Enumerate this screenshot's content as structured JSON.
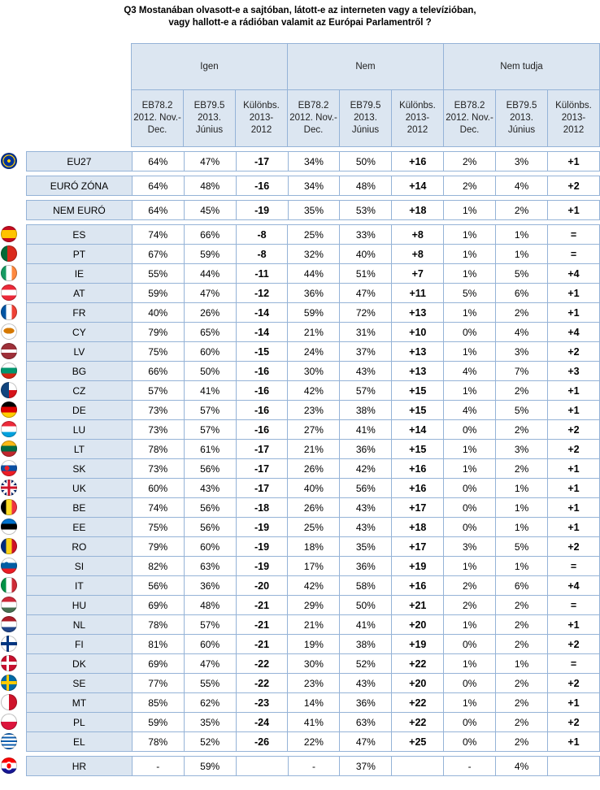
{
  "title": {
    "line1": "Q3 Mostanában olvasott-e a sajtóban, látott-e az interneten vagy a televízióban,",
    "line2": "vagy hallott-e a rádióban valamit az Európai Parlamentről ?"
  },
  "groups": [
    "Igen",
    "Nem",
    "Nem tudja"
  ],
  "subheaders": {
    "eb782": [
      "EB78.2",
      "2012. Nov.-",
      "Dec."
    ],
    "eb795": [
      "EB79.5",
      "2013.",
      "Június"
    ],
    "diff": [
      "Különbs.",
      "2013-",
      "2012"
    ]
  },
  "rows": [
    {
      "label": "EU27",
      "flag": "eu",
      "cells": [
        "64%",
        "47%",
        "-17",
        "34%",
        "50%",
        "+16",
        "2%",
        "3%",
        "+1"
      ]
    },
    {
      "label": "EURÓ ZÓNA",
      "flag": "",
      "cells": [
        "64%",
        "48%",
        "-16",
        "34%",
        "48%",
        "+14",
        "2%",
        "4%",
        "+2"
      ]
    },
    {
      "label": "NEM EURÓ",
      "flag": "",
      "cells": [
        "64%",
        "45%",
        "-19",
        "35%",
        "53%",
        "+18",
        "1%",
        "2%",
        "+1"
      ]
    },
    {
      "label": "ES",
      "flag": "es",
      "cells": [
        "74%",
        "66%",
        "-8",
        "25%",
        "33%",
        "+8",
        "1%",
        "1%",
        "="
      ]
    },
    {
      "label": "PT",
      "flag": "pt",
      "cells": [
        "67%",
        "59%",
        "-8",
        "32%",
        "40%",
        "+8",
        "1%",
        "1%",
        "="
      ]
    },
    {
      "label": "IE",
      "flag": "ie",
      "cells": [
        "55%",
        "44%",
        "-11",
        "44%",
        "51%",
        "+7",
        "1%",
        "5%",
        "+4"
      ]
    },
    {
      "label": "AT",
      "flag": "at",
      "cells": [
        "59%",
        "47%",
        "-12",
        "36%",
        "47%",
        "+11",
        "5%",
        "6%",
        "+1"
      ]
    },
    {
      "label": "FR",
      "flag": "fr",
      "cells": [
        "40%",
        "26%",
        "-14",
        "59%",
        "72%",
        "+13",
        "1%",
        "2%",
        "+1"
      ]
    },
    {
      "label": "CY",
      "flag": "cy",
      "cells": [
        "79%",
        "65%",
        "-14",
        "21%",
        "31%",
        "+10",
        "0%",
        "4%",
        "+4"
      ]
    },
    {
      "label": "LV",
      "flag": "lv",
      "cells": [
        "75%",
        "60%",
        "-15",
        "24%",
        "37%",
        "+13",
        "1%",
        "3%",
        "+2"
      ]
    },
    {
      "label": "BG",
      "flag": "bg",
      "cells": [
        "66%",
        "50%",
        "-16",
        "30%",
        "43%",
        "+13",
        "4%",
        "7%",
        "+3"
      ]
    },
    {
      "label": "CZ",
      "flag": "cz",
      "cells": [
        "57%",
        "41%",
        "-16",
        "42%",
        "57%",
        "+15",
        "1%",
        "2%",
        "+1"
      ]
    },
    {
      "label": "DE",
      "flag": "de",
      "cells": [
        "73%",
        "57%",
        "-16",
        "23%",
        "38%",
        "+15",
        "4%",
        "5%",
        "+1"
      ]
    },
    {
      "label": "LU",
      "flag": "lu",
      "cells": [
        "73%",
        "57%",
        "-16",
        "27%",
        "41%",
        "+14",
        "0%",
        "2%",
        "+2"
      ]
    },
    {
      "label": "LT",
      "flag": "lt",
      "cells": [
        "78%",
        "61%",
        "-17",
        "21%",
        "36%",
        "+15",
        "1%",
        "3%",
        "+2"
      ]
    },
    {
      "label": "SK",
      "flag": "sk",
      "cells": [
        "73%",
        "56%",
        "-17",
        "26%",
        "42%",
        "+16",
        "1%",
        "2%",
        "+1"
      ]
    },
    {
      "label": "UK",
      "flag": "uk",
      "cells": [
        "60%",
        "43%",
        "-17",
        "40%",
        "56%",
        "+16",
        "0%",
        "1%",
        "+1"
      ]
    },
    {
      "label": "BE",
      "flag": "be",
      "cells": [
        "74%",
        "56%",
        "-18",
        "26%",
        "43%",
        "+17",
        "0%",
        "1%",
        "+1"
      ]
    },
    {
      "label": "EE",
      "flag": "ee",
      "cells": [
        "75%",
        "56%",
        "-19",
        "25%",
        "43%",
        "+18",
        "0%",
        "1%",
        "+1"
      ]
    },
    {
      "label": "RO",
      "flag": "ro",
      "cells": [
        "79%",
        "60%",
        "-19",
        "18%",
        "35%",
        "+17",
        "3%",
        "5%",
        "+2"
      ]
    },
    {
      "label": "SI",
      "flag": "si",
      "cells": [
        "82%",
        "63%",
        "-19",
        "17%",
        "36%",
        "+19",
        "1%",
        "1%",
        "="
      ]
    },
    {
      "label": "IT",
      "flag": "it",
      "cells": [
        "56%",
        "36%",
        "-20",
        "42%",
        "58%",
        "+16",
        "2%",
        "6%",
        "+4"
      ]
    },
    {
      "label": "HU",
      "flag": "hu",
      "cells": [
        "69%",
        "48%",
        "-21",
        "29%",
        "50%",
        "+21",
        "2%",
        "2%",
        "="
      ]
    },
    {
      "label": "NL",
      "flag": "nl",
      "cells": [
        "78%",
        "57%",
        "-21",
        "21%",
        "41%",
        "+20",
        "1%",
        "2%",
        "+1"
      ]
    },
    {
      "label": "FI",
      "flag": "fi",
      "cells": [
        "81%",
        "60%",
        "-21",
        "19%",
        "38%",
        "+19",
        "0%",
        "2%",
        "+2"
      ]
    },
    {
      "label": "DK",
      "flag": "dk",
      "cells": [
        "69%",
        "47%",
        "-22",
        "30%",
        "52%",
        "+22",
        "1%",
        "1%",
        "="
      ]
    },
    {
      "label": "SE",
      "flag": "se",
      "cells": [
        "77%",
        "55%",
        "-22",
        "23%",
        "43%",
        "+20",
        "0%",
        "2%",
        "+2"
      ]
    },
    {
      "label": "MT",
      "flag": "mt",
      "cells": [
        "85%",
        "62%",
        "-23",
        "14%",
        "36%",
        "+22",
        "1%",
        "2%",
        "+1"
      ]
    },
    {
      "label": "PL",
      "flag": "pl",
      "cells": [
        "59%",
        "35%",
        "-24",
        "41%",
        "63%",
        "+22",
        "0%",
        "2%",
        "+2"
      ]
    },
    {
      "label": "EL",
      "flag": "el",
      "cells": [
        "78%",
        "52%",
        "-26",
        "22%",
        "47%",
        "+25",
        "0%",
        "2%",
        "+1"
      ]
    },
    {
      "label": "HR",
      "flag": "hr",
      "cells": [
        "-",
        "59%",
        "",
        "-",
        "37%",
        "",
        "-",
        "4%",
        ""
      ]
    }
  ]
}
